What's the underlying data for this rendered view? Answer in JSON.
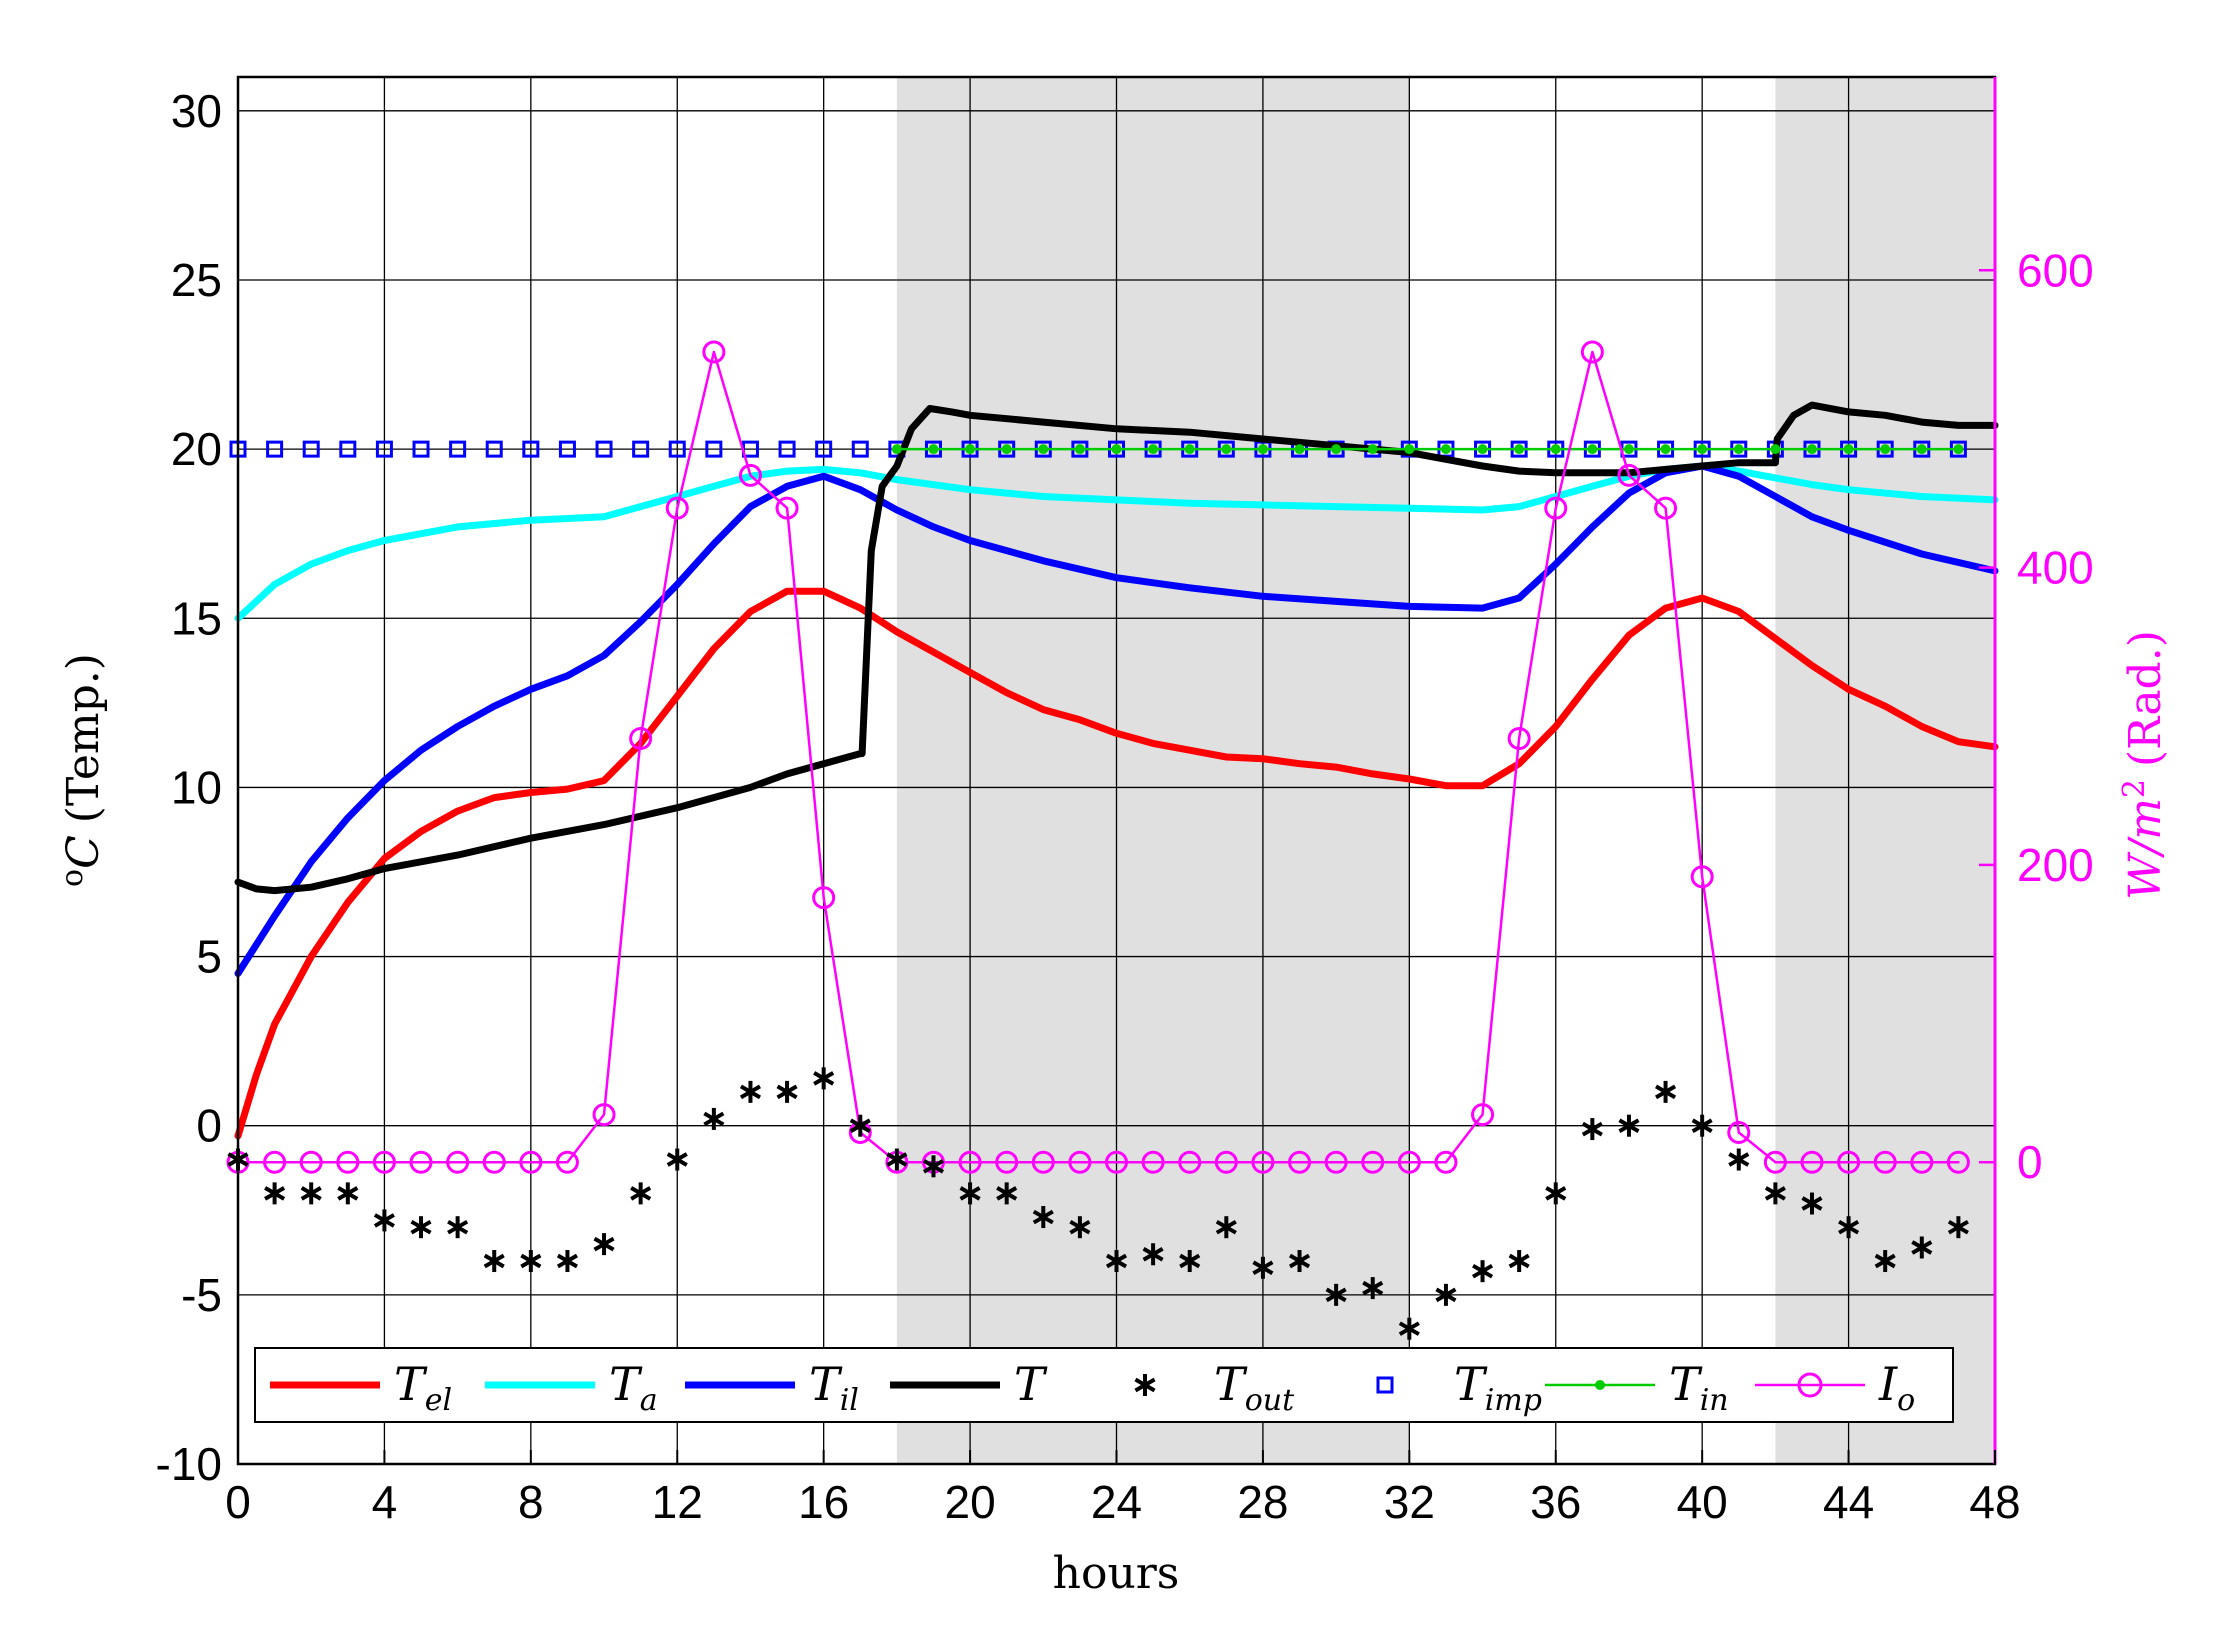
{
  "chart_data": {
    "type": "line",
    "xlabel": "hours",
    "ylabel_left": "(Temp.)",
    "ylabel_left_sup": "o",
    "ylabel_left_main": "C",
    "ylabel_right": "(Rad.)",
    "ylabel_right_main": "W/m",
    "ylabel_right_sup": "2",
    "xlim": [
      0,
      48
    ],
    "ylim_left": [
      -10,
      31
    ],
    "ylim_right": [
      -203,
      730
    ],
    "xticks": [
      0,
      4,
      8,
      12,
      16,
      20,
      24,
      28,
      32,
      36,
      40,
      44,
      48
    ],
    "yticks_left": [
      -10,
      -5,
      0,
      5,
      10,
      15,
      20,
      25,
      30
    ],
    "yticks_right": [
      0,
      200,
      400,
      600
    ],
    "grid": true,
    "legend_position": "bottom",
    "night_bands": [
      [
        18,
        32
      ],
      [
        42,
        48
      ]
    ],
    "colors": {
      "T_el": "#ff0000",
      "T_a": "#00ffff",
      "T_il": "#0000ff",
      "T": "#000000",
      "T_out": "#000000",
      "T_imp": "#0000ff",
      "T_in": "#00cc00",
      "I_o": "#ff00ff",
      "night": "#e0e0e0"
    },
    "series": [
      {
        "name": "T_el",
        "label_main": "T",
        "label_sub": "el",
        "style": "line",
        "axis": "left",
        "x": [
          0,
          0.5,
          1,
          2,
          3,
          4,
          5,
          6,
          7,
          8,
          9,
          10,
          11,
          12,
          13,
          14,
          15,
          16,
          17,
          18,
          19,
          20,
          21,
          22,
          23,
          24,
          25,
          26,
          27,
          28,
          29,
          30,
          31,
          32,
          33,
          34,
          35,
          36,
          37,
          38,
          39,
          40,
          41,
          42,
          43,
          44,
          45,
          46,
          47,
          48
        ],
        "y": [
          -0.3,
          1.5,
          3.0,
          5.0,
          6.6,
          7.9,
          8.7,
          9.3,
          9.7,
          9.85,
          9.95,
          10.2,
          11.3,
          12.7,
          14.1,
          15.2,
          15.8,
          15.8,
          15.3,
          14.6,
          14.0,
          13.4,
          12.8,
          12.3,
          12.0,
          11.6,
          11.3,
          11.1,
          10.9,
          10.85,
          10.7,
          10.6,
          10.4,
          10.25,
          10.05,
          10.05,
          10.7,
          11.8,
          13.2,
          14.5,
          15.3,
          15.6,
          15.2,
          14.4,
          13.6,
          12.9,
          12.4,
          11.8,
          11.35,
          11.2
        ]
      },
      {
        "name": "T_a",
        "label_main": "T",
        "label_sub": "a",
        "style": "line",
        "axis": "left",
        "x": [
          0,
          1,
          2,
          3,
          4,
          6,
          8,
          10,
          11,
          12,
          13,
          14,
          15,
          16,
          17,
          18,
          20,
          22,
          24,
          26,
          28,
          30,
          32,
          34,
          35,
          36,
          37,
          38,
          39,
          40,
          41,
          42,
          43,
          44,
          46,
          48
        ],
        "y": [
          15.0,
          16.0,
          16.6,
          17.0,
          17.3,
          17.7,
          17.9,
          18.0,
          18.3,
          18.6,
          18.9,
          19.2,
          19.35,
          19.4,
          19.3,
          19.1,
          18.8,
          18.6,
          18.5,
          18.4,
          18.35,
          18.3,
          18.25,
          18.2,
          18.3,
          18.6,
          18.9,
          19.2,
          19.4,
          19.5,
          19.35,
          19.15,
          18.95,
          18.8,
          18.6,
          18.5
        ]
      },
      {
        "name": "T_il",
        "label_main": "T",
        "label_sub": "il",
        "style": "line",
        "axis": "left",
        "x": [
          0,
          1,
          2,
          3,
          4,
          5,
          6,
          7,
          8,
          9,
          10,
          11,
          12,
          13,
          14,
          15,
          16,
          17,
          18,
          19,
          20,
          22,
          24,
          26,
          28,
          30,
          32,
          34,
          35,
          36,
          37,
          38,
          39,
          40,
          41,
          42,
          43,
          44,
          46,
          48
        ],
        "y": [
          4.5,
          6.2,
          7.8,
          9.1,
          10.2,
          11.1,
          11.8,
          12.4,
          12.9,
          13.3,
          13.9,
          14.9,
          16.0,
          17.2,
          18.3,
          18.9,
          19.2,
          18.8,
          18.2,
          17.7,
          17.3,
          16.7,
          16.2,
          15.9,
          15.65,
          15.5,
          15.35,
          15.3,
          15.6,
          16.6,
          17.7,
          18.7,
          19.3,
          19.5,
          19.2,
          18.6,
          18.0,
          17.6,
          16.9,
          16.4
        ]
      },
      {
        "name": "T",
        "label_main": "T",
        "label_sub": "",
        "style": "line",
        "axis": "left",
        "x": [
          0,
          0.5,
          1,
          2,
          3,
          4,
          6,
          8,
          10,
          12,
          14,
          15,
          16,
          17,
          17.05,
          17.3,
          17.6,
          18,
          18.4,
          18.9,
          19.5,
          20,
          22,
          24,
          26,
          28,
          30,
          31,
          32,
          33,
          34,
          35,
          36,
          38,
          40,
          41,
          42,
          42.05,
          42.5,
          43,
          44,
          45,
          46,
          47,
          48
        ],
        "y": [
          7.2,
          7.0,
          6.95,
          7.05,
          7.3,
          7.6,
          8.0,
          8.5,
          8.9,
          9.4,
          10.0,
          10.4,
          10.7,
          11.0,
          11.0,
          17.0,
          18.9,
          19.5,
          20.6,
          21.2,
          21.1,
          21.0,
          20.8,
          20.6,
          20.5,
          20.3,
          20.1,
          20.0,
          19.9,
          19.7,
          19.5,
          19.35,
          19.3,
          19.3,
          19.5,
          19.6,
          19.6,
          20.3,
          21.0,
          21.3,
          21.1,
          21.0,
          20.8,
          20.7,
          20.7
        ]
      },
      {
        "name": "T_out",
        "label_main": "T",
        "label_sub": "out",
        "style": "asterisk",
        "axis": "left",
        "x": [
          0,
          1,
          2,
          3,
          4,
          5,
          6,
          7,
          8,
          9,
          10,
          11,
          12,
          13,
          14,
          15,
          16,
          17,
          18,
          19,
          20,
          21,
          22,
          23,
          24,
          25,
          26,
          27,
          28,
          29,
          30,
          31,
          32,
          33,
          34,
          35,
          36,
          37,
          38,
          39,
          40,
          41,
          42,
          43,
          44,
          45,
          46,
          47
        ],
        "y": [
          -1,
          -2,
          -2,
          -2,
          -2.8,
          -3,
          -3,
          -4,
          -4,
          -4,
          -3.5,
          -2,
          -1,
          0.2,
          1,
          1,
          1.4,
          0,
          -1,
          -1.2,
          -2,
          -2,
          -2.7,
          -3,
          -4,
          -3.8,
          -4,
          -3,
          -4.2,
          -4,
          -5,
          -4.8,
          -6,
          -5,
          -4.3,
          -4,
          -2,
          -0.1,
          0,
          1,
          0,
          -1,
          -2,
          -2.3,
          -3,
          -4,
          -3.6,
          -3
        ]
      },
      {
        "name": "T_imp",
        "label_main": "T",
        "label_sub": "imp",
        "style": "square",
        "axis": "left",
        "x": [
          0,
          1,
          2,
          3,
          4,
          5,
          6,
          7,
          8,
          9,
          10,
          11,
          12,
          13,
          14,
          15,
          16,
          17,
          18,
          19,
          20,
          21,
          22,
          23,
          24,
          25,
          26,
          27,
          28,
          29,
          30,
          31,
          32,
          33,
          34,
          35,
          36,
          37,
          38,
          39,
          40,
          41,
          42,
          43,
          44,
          45,
          46,
          47
        ],
        "y": [
          20,
          20,
          20,
          20,
          20,
          20,
          20,
          20,
          20,
          20,
          20,
          20,
          20,
          20,
          20,
          20,
          20,
          20,
          20,
          20,
          20,
          20,
          20,
          20,
          20,
          20,
          20,
          20,
          20,
          20,
          20,
          20,
          20,
          20,
          20,
          20,
          20,
          20,
          20,
          20,
          20,
          20,
          20,
          20,
          20,
          20,
          20,
          20
        ]
      },
      {
        "name": "T_in",
        "label_main": "T",
        "label_sub": "in",
        "style": "line-dot",
        "axis": "left",
        "x": [
          18,
          19,
          20,
          21,
          22,
          23,
          24,
          25,
          26,
          27,
          28,
          29,
          30,
          31,
          32,
          33,
          34,
          35,
          36,
          37,
          38,
          39,
          40,
          41,
          42,
          43,
          44,
          45,
          46,
          47
        ],
        "y": [
          20,
          20,
          20,
          20,
          20,
          20,
          20,
          20,
          20,
          20,
          20,
          20,
          20,
          20,
          20,
          20,
          20,
          20,
          20,
          20,
          20,
          20,
          20,
          20,
          20,
          20,
          20,
          20,
          20,
          20
        ]
      },
      {
        "name": "I_o",
        "label_main": "I",
        "label_sub": "o",
        "style": "line-circle",
        "axis": "right",
        "x": [
          0,
          1,
          2,
          3,
          4,
          5,
          6,
          7,
          8,
          9,
          10,
          11,
          12,
          13,
          14,
          15,
          16,
          17,
          18,
          19,
          20,
          21,
          22,
          23,
          24,
          25,
          26,
          27,
          28,
          29,
          30,
          31,
          32,
          33,
          34,
          35,
          36,
          37,
          38,
          39,
          40,
          41,
          42,
          43,
          44,
          45,
          46,
          47
        ],
        "y": [
          0,
          0,
          0,
          0,
          0,
          0,
          0,
          0,
          0,
          0,
          32,
          285,
          440,
          545,
          462,
          440,
          178,
          20,
          0,
          0,
          0,
          0,
          0,
          0,
          0,
          0,
          0,
          0,
          0,
          0,
          0,
          0,
          0,
          0,
          32,
          285,
          440,
          545,
          462,
          440,
          192,
          20,
          0,
          0,
          0,
          0,
          0,
          0
        ]
      }
    ]
  }
}
